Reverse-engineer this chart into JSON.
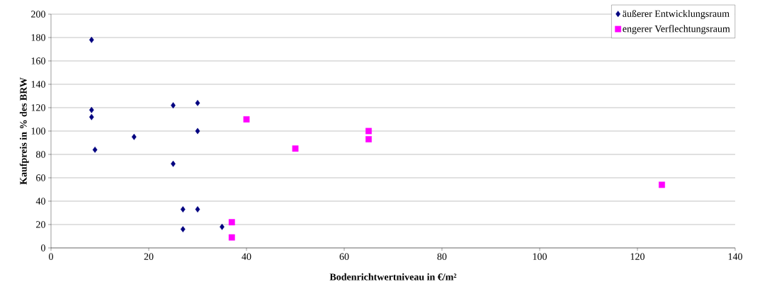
{
  "chart_data": {
    "type": "scatter",
    "xlabel": "Bodenrichtwertniveau in €/m²",
    "ylabel": "Kaufpreis in % des BRW",
    "xlim": [
      0,
      140
    ],
    "xticks": [
      0,
      20,
      40,
      60,
      80,
      100,
      120,
      140
    ],
    "ylim": [
      0,
      200
    ],
    "yticks": [
      0,
      20,
      40,
      60,
      80,
      100,
      120,
      140,
      160,
      180,
      200
    ],
    "grid": "y",
    "legend": "top right",
    "series": [
      {
        "name": "äußerer Entwicklungsraum",
        "color": "#000080",
        "marker": "diamond",
        "x": [
          8.3,
          8.3,
          8.3,
          9,
          17,
          25,
          30,
          30,
          25,
          27,
          30,
          27,
          35
        ],
        "values": [
          178,
          118,
          112,
          84,
          95,
          122,
          124,
          100,
          72,
          33,
          33,
          16,
          18
        ]
      },
      {
        "name": "engerer Verflechtungsraum",
        "color": "#ff00ff",
        "marker": "square",
        "x": [
          40,
          50,
          65,
          65,
          37,
          37,
          125
        ],
        "values": [
          110,
          85,
          100,
          93,
          22,
          9,
          54
        ]
      }
    ]
  }
}
